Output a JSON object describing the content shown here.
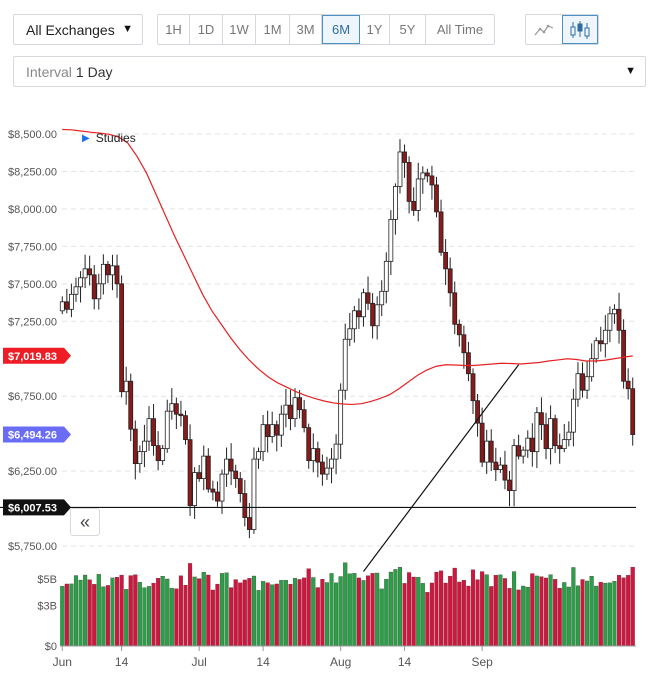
{
  "toolbar": {
    "exchange_label": "All Exchanges",
    "ranges": [
      "1H",
      "1D",
      "1W",
      "1M",
      "3M",
      "6M",
      "1Y",
      "5Y",
      "All Time"
    ],
    "active_range": "6M",
    "chart_types": [
      {
        "name": "line-chart-icon",
        "active": false
      },
      {
        "name": "candlestick-chart-icon",
        "active": true
      }
    ],
    "interval_label": "Interval",
    "interval_value": "1 Day"
  },
  "studies_label": "Studies",
  "colors": {
    "up": "#27a148",
    "down": "#d0163f",
    "ma": "#e52222",
    "ma_tag": "#ee1c24",
    "last_tag": "#6a6cf6",
    "support_tag": "#111111",
    "active_blue": "#4a90c8"
  },
  "chart_data": {
    "type": "candlestick",
    "price_axis": {
      "ticks": [
        "$8,500.00",
        "$8,250.00",
        "$8,000.00",
        "$7,750.00",
        "$7,500.00",
        "$7,250.00",
        "$6,750.00",
        "$6,250.00",
        "$5,750.00"
      ],
      "tick_values": [
        8500,
        8250,
        8000,
        7750,
        7500,
        7250,
        6750,
        6250,
        5750
      ],
      "range": [
        5630,
        8540
      ],
      "grid": true
    },
    "x_axis": {
      "ticks": [
        "Jun",
        "14",
        "Jul",
        "14",
        "Aug",
        "14",
        "Sep"
      ],
      "tick_index": [
        0,
        13,
        30,
        44,
        61,
        75,
        92
      ]
    },
    "volume_axis": {
      "ticks": [
        "$5B",
        "$3B",
        "$0"
      ],
      "tick_values": [
        5,
        3,
        0
      ],
      "range": [
        0,
        5.8
      ]
    },
    "tags": [
      {
        "label": "$7,019.83",
        "value": 7019.83,
        "kind": "moving-average"
      },
      {
        "label": "$6,494.26",
        "value": 6494.26,
        "kind": "last-price"
      },
      {
        "label": "$6,007.53",
        "value": 6007.53,
        "kind": "support-line"
      }
    ],
    "trendline": {
      "from": {
        "index": 66,
        "price": 5580
      },
      "to": {
        "index": 100,
        "price": 6960
      }
    },
    "closes": [
      7380,
      7330,
      7430,
      7480,
      7540,
      7600,
      7560,
      7400,
      7500,
      7630,
      7560,
      7620,
      7500,
      6780,
      6850,
      6530,
      6300,
      6380,
      6450,
      6600,
      6420,
      6320,
      6400,
      6650,
      6700,
      6630,
      6620,
      6460,
      6020,
      6240,
      6200,
      6350,
      6130,
      6110,
      6050,
      6230,
      6330,
      6250,
      6200,
      6100,
      5940,
      5860,
      6330,
      6380,
      6560,
      6480,
      6560,
      6490,
      6630,
      6690,
      6600,
      6740,
      6660,
      6540,
      6320,
      6400,
      6310,
      6230,
      6270,
      6330,
      6430,
      6790,
      7130,
      7200,
      7320,
      7280,
      7440,
      7370,
      7220,
      7360,
      7450,
      7650,
      7930,
      8150,
      8380,
      8310,
      8050,
      7990,
      8200,
      8240,
      8220,
      8160,
      7980,
      7710,
      7600,
      7440,
      7230,
      7160,
      7040,
      6900,
      6720,
      6570,
      6310,
      6450,
      6310,
      6260,
      6290,
      6190,
      6120,
      6420,
      6350,
      6390,
      6470,
      6380,
      6640,
      6560,
      6400,
      6600,
      6420,
      6400,
      6460,
      6510,
      6730,
      6900,
      6790,
      6880,
      7000,
      7120,
      7100,
      7190,
      7300,
      7330,
      7190,
      6850,
      6800,
      6494
    ],
    "ma_values": [
      8530,
      8528,
      8520,
      8512,
      8506,
      8498,
      8480,
      8440,
      8350,
      8240,
      8100,
      7960,
      7820,
      7690,
      7560,
      7430,
      7320,
      7230,
      7140,
      7060,
      6990,
      6930,
      6880,
      6840,
      6810,
      6780,
      6755,
      6735,
      6718,
      6705,
      6698,
      6695,
      6700,
      6715,
      6735,
      6760,
      6800,
      6845,
      6890,
      6925,
      6950,
      6960,
      6958,
      6955,
      6955,
      6960,
      6965,
      6970,
      6968,
      6965,
      6970,
      6975,
      6985,
      6992,
      7000,
      6995,
      6985,
      6985,
      6990,
      7000,
      7010,
      7019
    ]
  }
}
